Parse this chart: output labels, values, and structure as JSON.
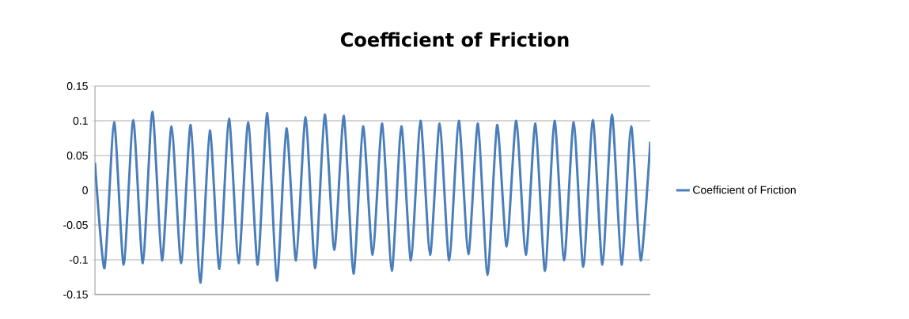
{
  "chart_data": {
    "type": "line",
    "title": "Coefficient of Friction",
    "categories": [
      null,
      null,
      null,
      null,
      null,
      null,
      null,
      null,
      null,
      null,
      null,
      null,
      null,
      null,
      null,
      null,
      null,
      null,
      null,
      null,
      null,
      null,
      null,
      null,
      null,
      null,
      null,
      null,
      null,
      null,
      null,
      null,
      null,
      null,
      null,
      null,
      null,
      null,
      null,
      null,
      null,
      null,
      null,
      null,
      null,
      null,
      null,
      null,
      null,
      null,
      null,
      null,
      null,
      null,
      null,
      null,
      null,
      null,
      null
    ],
    "series": [
      {
        "name": "Coefficient of Friction",
        "color": "#4a7ebb",
        "values": [
          0.04,
          -0.112,
          0.098,
          -0.107,
          0.101,
          -0.105,
          0.113,
          -0.101,
          0.092,
          -0.105,
          0.094,
          -0.133,
          0.086,
          -0.113,
          0.103,
          -0.105,
          0.098,
          -0.107,
          0.111,
          -0.13,
          0.089,
          -0.101,
          0.105,
          -0.112,
          0.109,
          -0.086,
          0.107,
          -0.12,
          0.092,
          -0.093,
          0.096,
          -0.116,
          0.092,
          -0.101,
          0.1,
          -0.093,
          0.096,
          -0.101,
          0.1,
          -0.092,
          0.096,
          -0.122,
          0.094,
          -0.081,
          0.1,
          -0.093,
          0.096,
          -0.116,
          0.1,
          -0.101,
          0.098,
          -0.11,
          0.101,
          -0.107,
          0.109,
          -0.107,
          0.092,
          -0.101,
          0.07
        ]
      }
    ],
    "ylim": [
      -0.15,
      0.15
    ],
    "yticks": [
      -0.15,
      -0.1,
      -0.05,
      0,
      0.05,
      0.1,
      0.15
    ],
    "grid": "y",
    "legend": "right",
    "marker": "none",
    "line_style": "solid"
  }
}
